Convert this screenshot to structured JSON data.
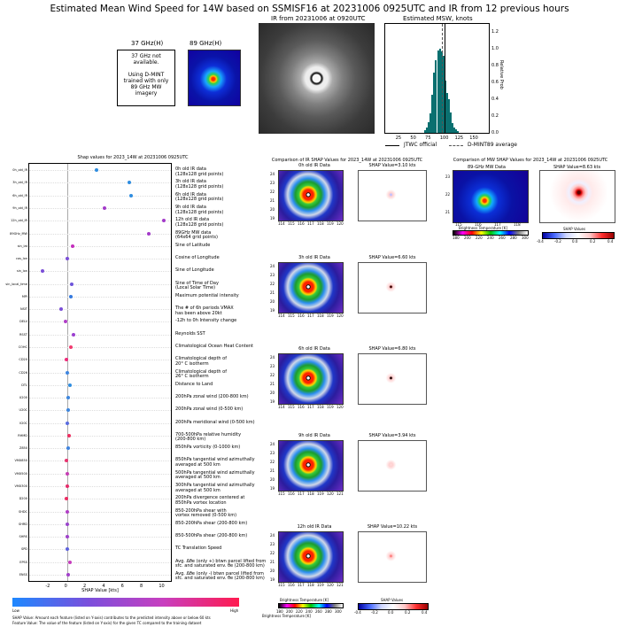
{
  "title": "Estimated Mean Wind Speed for 14W based on SSMISF16 at 20231006 0925UTC and IR from 12 previous hours",
  "top_panels": {
    "ghz37_title": "37 GHz(H)",
    "ghz37_message": "37 GHz not available.\n\nUsing D-MINT trained with only 89 GHz MW imagery",
    "ghz89_title": "89 GHz(H)",
    "ir_title": "IR from 20231006 at 0920UTC",
    "msw_title": "Estimated MSW, knots",
    "legend_official": "JTWC official",
    "legend_average": "D-MINT89 average"
  },
  "shap_panel": {
    "title": "Shap values for 2023_14W at 20231006 0925UTC",
    "xlabel": "SHAP Value [kts]",
    "low_label": "Low",
    "high_label": "High",
    "footnote_1": "SHAP Value: Amount each feature (listed on Y-axis) contributes to the predicted intensity above or below 60 kts",
    "footnote_2": "Feature Value: The value of the feature (listed on Y-axis) for the given TC compared to the training dataset"
  },
  "ir_compare": {
    "title": "Comparison of IR SHAP Values for 2023_14W at 20231006 0925UTC",
    "colorbar_label": "Brightness Temperature [K]",
    "shap_colorbar_label": "SHAP Values",
    "bt_ticks": [
      "180",
      "200",
      "220",
      "240",
      "260",
      "280",
      "300"
    ],
    "shap_ticks": [
      "-0.4",
      "-0.2",
      "0.0",
      "0.2",
      "0.4"
    ],
    "rows": [
      {
        "ir_title": "0h old IR Data",
        "shap_title": "SHAP Value=3.10 kts",
        "lat_ticks": [
          "24",
          "23",
          "22",
          "21",
          "20",
          "19"
        ],
        "lon_ticks": [
          "114",
          "115",
          "116",
          "117",
          "118",
          "119",
          "120"
        ]
      },
      {
        "ir_title": "3h old IR Data",
        "shap_title": "SHAP Value=6.60 kts",
        "lat_ticks": [
          "24",
          "23",
          "22",
          "21",
          "20",
          "19"
        ],
        "lon_ticks": [
          "114",
          "115",
          "116",
          "117",
          "118",
          "119",
          "120"
        ]
      },
      {
        "ir_title": "6h old IR Data",
        "shap_title": "SHAP Value=6.80 kts",
        "lat_ticks": [
          "24",
          "23",
          "22",
          "21",
          "20",
          "19"
        ],
        "lon_ticks": [
          "114",
          "115",
          "116",
          "117",
          "118",
          "119",
          "120"
        ]
      },
      {
        "ir_title": "9h old IR Data",
        "shap_title": "SHAP Value=3.94 kts",
        "lat_ticks": [
          "24",
          "23",
          "22",
          "21",
          "20",
          "19"
        ],
        "lon_ticks": [
          "115",
          "116",
          "117",
          "118",
          "119",
          "120",
          "121"
        ]
      },
      {
        "ir_title": "12h old IR Data",
        "shap_title": "SHAP Value=10.22 kts",
        "lat_ticks": [
          "24",
          "23",
          "22",
          "21",
          "20",
          "19"
        ],
        "lon_ticks": [
          "115",
          "116",
          "117",
          "118",
          "119",
          "120",
          "121"
        ]
      }
    ]
  },
  "mw_compare": {
    "title": "Comparison of MW SHAP Values for 2023_14W at 20231006 0925UTC",
    "mw_title": "89-GHz MW Data",
    "shap_title": "SHAP Value=8.63 kts",
    "lat_ticks": [
      "23",
      "22",
      "21"
    ],
    "lon_ticks": [
      "115",
      "116",
      "117",
      "118"
    ],
    "colorbar_label": "Brightness Temperature [K]",
    "bt_ticks": [
      "180",
      "200",
      "220",
      "240",
      "260",
      "280",
      "300"
    ],
    "shap_colorbar_label": "SHAP Values",
    "shap_ticks": [
      "-0.4",
      "-0.2",
      "0.0",
      "0.2",
      "0.4"
    ]
  },
  "chart_data": [
    {
      "type": "bar",
      "title": "Estimated MSW, knots",
      "xlabel": "",
      "ylabel": "Relative Prob",
      "xlim": [
        0,
        175
      ],
      "ylim": [
        0,
        1.3
      ],
      "x_ticks": [
        25,
        50,
        75,
        100,
        125,
        150
      ],
      "y_ticks": [
        0.0,
        0.2,
        0.4,
        0.6,
        0.8,
        1.0,
        1.2
      ],
      "bin_centers": [
        68,
        71,
        74,
        77,
        80,
        83,
        86,
        89,
        92,
        95,
        98,
        101,
        104,
        107,
        110,
        113,
        116,
        119,
        122
      ],
      "values": [
        0.03,
        0.06,
        0.13,
        0.23,
        0.45,
        0.72,
        0.87,
        0.98,
        1.0,
        0.97,
        0.92,
        0.62,
        0.48,
        0.4,
        0.24,
        0.12,
        0.06,
        0.04,
        0.02
      ],
      "jtwc_official": 100,
      "dmint89_average": 96
    },
    {
      "type": "scatter",
      "title": "Shap values for 2023_14W at 20231006 0925UTC",
      "xlabel": "SHAP Value [kts]",
      "xlim": [
        -4,
        11
      ],
      "x_ticks": [
        -2,
        0,
        2,
        4,
        6,
        8,
        10
      ],
      "features": [
        {
          "short": "0h_old_IR",
          "label": "0h old IR data\n(128x128 grid points)",
          "value": 3.1,
          "color": "#2f8de0"
        },
        {
          "short": "3h_old_IR",
          "label": "3h old IR data\n(128x128 grid points)",
          "value": 6.6,
          "color": "#2f8de0"
        },
        {
          "short": "6h_old_IR",
          "label": "6h old IR data\n(128x128 grid points)",
          "value": 6.8,
          "color": "#2f8de0"
        },
        {
          "short": "9h_old_IR",
          "label": "9h old IR data\n(128x128 grid points)",
          "value": 3.94,
          "color": "#a33ac9"
        },
        {
          "short": "12h_old_IR",
          "label": "12h old IR data\n(128x128 grid points)",
          "value": 10.22,
          "color": "#a33ac9"
        },
        {
          "short": "89GHz_MW",
          "label": "89GHz MW data\n(64x64 grid points)",
          "value": 8.63,
          "color": "#a33ac9"
        },
        {
          "short": "sin_lat",
          "label": "Sine of Latitude",
          "value": 0.6,
          "color": "#c42dbd"
        },
        {
          "short": "cos_lon",
          "label": "Cosine of Longitude",
          "value": 0.05,
          "color": "#7b4ed8"
        },
        {
          "short": "sin_lon",
          "label": "Sine of Longitude",
          "value": -2.6,
          "color": "#7b4ed8"
        },
        {
          "short": "sin_local_time",
          "label": "Sine of Time of Day\n(Local Solar Time)",
          "value": 0.5,
          "color": "#6d54da"
        },
        {
          "short": "MPI",
          "label": "Maximum potential intensity",
          "value": 0.4,
          "color": "#3479df"
        },
        {
          "short": "NSIT",
          "label": "The # of 6h periods VMAX\nhas been above 20kt",
          "value": -0.6,
          "color": "#7b4ed8"
        },
        {
          "short": "DELV",
          "label": "-12h to 0h Intensity change",
          "value": -0.15,
          "color": "#b03ec8"
        },
        {
          "short": "RSST",
          "label": "Reynolds SST",
          "value": 0.7,
          "color": "#9b3fd0"
        },
        {
          "short": "COHC",
          "label": "Climatological Ocean Heat Content",
          "value": 0.45,
          "color": "#f23a6f"
        },
        {
          "short": "CD20",
          "label": "Climatological depth of\n20° C isotherm",
          "value": -0.1,
          "color": "#f02a7a"
        },
        {
          "short": "CD26",
          "label": "Climatological depth of\n26° C isotherm",
          "value": 0.05,
          "color": "#3f86e0"
        },
        {
          "short": "DTL",
          "label": "Distance to Land",
          "value": 0.35,
          "color": "#2f8de0"
        },
        {
          "short": "U200",
          "label": "200hPa zonal wind (200-800 km)",
          "value": 0.15,
          "color": "#3d86de"
        },
        {
          "short": "U20C",
          "label": "200hPa zonal wind (0-500 km)",
          "value": 0.1,
          "color": "#3d86de"
        },
        {
          "short": "V20C",
          "label": "200hPa meridional wind (0-500 km)",
          "value": 0.05,
          "color": "#5a6ce0"
        },
        {
          "short": "RHMD",
          "label": "700-500hPa relative humidity\n(200-800 km)",
          "value": 0.2,
          "color": "#ee2c5f"
        },
        {
          "short": "Z850",
          "label": "850hPa vorticity (0-1000 km)",
          "value": 0.12,
          "color": "#3f84df"
        },
        {
          "short": "VMX850",
          "label": "850hPa tangential wind azimuthally\naveraged at 500 km",
          "value": -0.1,
          "color": "#e8336f"
        },
        {
          "short": "VMX500",
          "label": "500hPa tangential wind azimuthally\naveraged at 500 km",
          "value": 0.0,
          "color": "#c73eb4"
        },
        {
          "short": "VMX300",
          "label": "300hPa tangential wind azimuthally\naveraged at 500 km",
          "value": 0.05,
          "color": "#e62c6a"
        },
        {
          "short": "D200",
          "label": "200hPa divergence centered at\n850hPa vortex location",
          "value": -0.05,
          "color": "#ee2b62"
        },
        {
          "short": "SHDC",
          "label": "850-200hPa shear with\nvortex removed (0-500 km)",
          "value": 0.0,
          "color": "#b13fc6"
        },
        {
          "short": "SHRD",
          "label": "850-200hPa shear (200-800 km)",
          "value": 0.0,
          "color": "#9a44cd"
        },
        {
          "short": "SHRS",
          "label": "850-500hPa shear (200-800 km)",
          "value": 0.05,
          "color": "#a042cb"
        },
        {
          "short": "SPD",
          "label": "TC Translation Speed",
          "value": 0.0,
          "color": "#5e62de"
        },
        {
          "short": "EPSS",
          "label": "Avg. Δθe (only +) btwn parcel lifted from\nsfc. and saturated env. θe (200-800 km)",
          "value": 0.3,
          "color": "#c63ebd"
        },
        {
          "short": "ENSS",
          "label": "Avg. Δθe (only -) btwn parcel lifted from\nsfc. and saturated env. θe (200-800 km)",
          "value": 0.1,
          "color": "#a23fcb"
        }
      ]
    }
  ]
}
